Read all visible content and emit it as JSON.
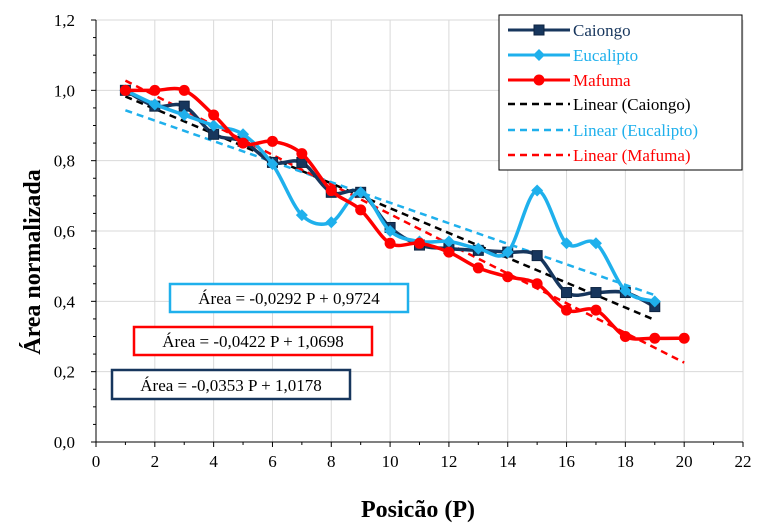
{
  "chart_data": {
    "type": "line",
    "title": "",
    "xlabel": "Posicão (P)",
    "ylabel": "Área  normalizada",
    "xlim": [
      0,
      22
    ],
    "ylim": [
      0,
      1.2
    ],
    "xticks": [
      0,
      2,
      4,
      6,
      8,
      10,
      12,
      14,
      16,
      18,
      20,
      22
    ],
    "xtick_labels": [
      "0",
      "2",
      "4",
      "6",
      "8",
      "10",
      "12",
      "14",
      "16",
      "18",
      "20",
      "22"
    ],
    "yticks": [
      0,
      0.2,
      0.4,
      0.6,
      0.8,
      1.0,
      1.2
    ],
    "ytick_labels": [
      "0,0",
      "0,2",
      "0,4",
      "0,6",
      "0,8",
      "1,0",
      "1,2"
    ],
    "grid": true,
    "legend_position": "top-right",
    "series": [
      {
        "name": "Caiongo",
        "color": "#17365d",
        "marker": "square",
        "x": [
          1,
          2,
          3,
          4,
          5,
          6,
          7,
          8,
          9,
          10,
          11,
          12,
          13,
          14,
          15,
          16,
          17,
          18,
          19
        ],
        "values": [
          1.0,
          0.955,
          0.955,
          0.875,
          0.855,
          0.795,
          0.795,
          0.71,
          0.71,
          0.61,
          0.56,
          0.55,
          0.545,
          0.54,
          0.53,
          0.425,
          0.425,
          0.425,
          0.385
        ]
      },
      {
        "name": "Eucalipto",
        "color": "#1fb0ec",
        "marker": "diamond",
        "x": [
          1,
          2,
          3,
          4,
          5,
          6,
          7,
          8,
          9,
          10,
          11,
          12,
          13,
          14,
          15,
          16,
          17,
          18,
          19
        ],
        "values": [
          1.0,
          0.96,
          0.93,
          0.9,
          0.875,
          0.79,
          0.645,
          0.625,
          0.71,
          0.6,
          0.57,
          0.57,
          0.55,
          0.54,
          0.715,
          0.565,
          0.565,
          0.43,
          0.4
        ]
      },
      {
        "name": "Mafuma",
        "color": "#ff0000",
        "marker": "circle",
        "x": [
          1,
          2,
          3,
          4,
          5,
          6,
          7,
          8,
          9,
          10,
          11,
          12,
          13,
          14,
          15,
          16,
          17,
          18,
          19,
          20
        ],
        "values": [
          1.0,
          1.0,
          1.0,
          0.93,
          0.85,
          0.855,
          0.82,
          0.715,
          0.66,
          0.565,
          0.565,
          0.54,
          0.495,
          0.47,
          0.45,
          0.375,
          0.375,
          0.3,
          0.295,
          0.295
        ]
      }
    ],
    "trendlines": [
      {
        "name": "Linear (Caiongo)",
        "color": "#000000",
        "slope": -0.0353,
        "intercept": 1.0178,
        "x_range": [
          1,
          19
        ],
        "equation": "Área = -0,0353 P + 1,0178"
      },
      {
        "name": "Linear (Eucalipto)",
        "color": "#1fb0ec",
        "slope": -0.0292,
        "intercept": 0.9724,
        "x_range": [
          1,
          19
        ],
        "equation": "Área = -0,0292 P + 0,9724"
      },
      {
        "name": "Linear (Mafuma)",
        "color": "#ff0000",
        "slope": -0.0422,
        "intercept": 1.0698,
        "x_range": [
          1,
          20
        ],
        "equation": "Área = -0,0422 P + 1,0698"
      }
    ],
    "equation_boxes": [
      {
        "text": "Área = -0,0292 P + 0,9724",
        "border": "#1fb0ec"
      },
      {
        "text": "Área = -0,0422 P + 1,0698",
        "border": "#ff0000"
      },
      {
        "text": "Área = -0,0353 P + 1,0178",
        "border": "#17365d"
      }
    ],
    "legend": [
      "Caiongo",
      "Eucalipto",
      "Mafuma",
      "Linear (Caiongo)",
      "Linear (Eucalipto)",
      "Linear (Mafuma)"
    ]
  }
}
